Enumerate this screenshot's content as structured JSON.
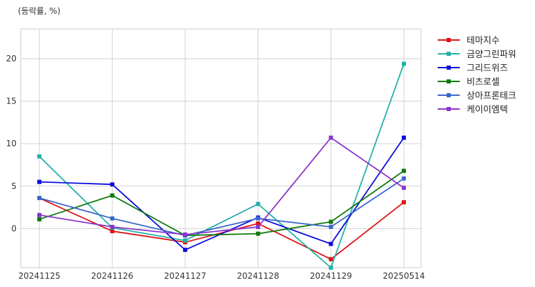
{
  "chart_data": {
    "type": "line",
    "unit_label": "(등락률, %)",
    "categories": [
      "20241125",
      "20241126",
      "20241127",
      "20241128",
      "20241129",
      "20250514"
    ],
    "ylim": [
      -4.6,
      23.5
    ],
    "yticks": [
      0,
      5,
      10,
      15,
      20
    ],
    "grid": true,
    "legend_position": "right",
    "series": [
      {
        "name": "테마지수",
        "color": "#dd1111",
        "values": [
          3.6,
          -0.3,
          -1.6,
          0.6,
          -3.6,
          3.1
        ]
      },
      {
        "name": "금양그린파워",
        "color": "#22b0a8",
        "values": [
          8.5,
          0.1,
          -1.4,
          2.9,
          -4.6,
          19.4
        ]
      },
      {
        "name": "그리드위즈",
        "color": "#0a0adc",
        "values": [
          5.5,
          5.2,
          -2.5,
          1.3,
          -1.8,
          10.7
        ]
      },
      {
        "name": "비츠로셀",
        "color": "#0c7a0c",
        "values": [
          1.1,
          3.9,
          -0.8,
          -0.6,
          0.8,
          6.8
        ]
      },
      {
        "name": "상아프론테크",
        "color": "#3a66cc",
        "values": [
          3.6,
          1.2,
          -0.8,
          1.2,
          0.2,
          5.9
        ]
      },
      {
        "name": "케이이엠텍",
        "color": "#8a33cc",
        "values": [
          1.6,
          0.2,
          -0.7,
          0.2,
          10.7,
          4.8
        ]
      }
    ]
  }
}
